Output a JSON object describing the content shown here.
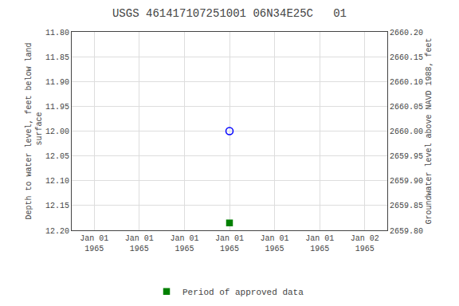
{
  "chart_data": {
    "type": "scatter",
    "title": "USGS 461417107251001 06N34E25C   01",
    "y_label": "Depth to water level, feet below land\n surface",
    "y2_label": "Groundwater level above NAVD 1988, feet",
    "categories": [
      "Jan 01\n1965",
      "Jan 01\n1965",
      "Jan 01\n1965",
      "Jan 01\n1965",
      "Jan 01\n1965",
      "Jan 01\n1965",
      "Jan 02\n1965"
    ],
    "ylim": [
      12.2,
      11.8
    ],
    "yticks": [
      {
        "value": 11.8,
        "label": "11.80"
      },
      11.85,
      {
        "value": 11.9,
        "label": "11.90"
      },
      11.95,
      {
        "value": 12.0,
        "label": "12.00"
      },
      12.05,
      {
        "value": 12.1,
        "label": "12.10"
      },
      12.15,
      {
        "value": 12.2,
        "label": "12.20"
      }
    ],
    "y2lim": [
      2659.8,
      2660.2
    ],
    "y2ticks": [
      {
        "value": 2660.2,
        "label": "2660.20"
      },
      2660.15,
      {
        "value": 2660.1,
        "label": "2660.10"
      },
      2660.05,
      {
        "value": 2660.0,
        "label": "2660.00"
      },
      2659.95,
      {
        "value": 2659.9,
        "label": "2659.90"
      },
      2659.85,
      {
        "value": 2659.8,
        "label": "2659.80"
      }
    ],
    "series": [
      {
        "color": "#0000ff",
        "marker": "circle-open",
        "values": [
          null,
          null,
          null,
          12.0,
          null,
          null,
          null
        ]
      },
      {
        "name": "Period of approved data",
        "color": "#008000",
        "marker": "square",
        "values": [
          null,
          null,
          null,
          12.185,
          null,
          null,
          null
        ]
      }
    ],
    "grid": true,
    "legend": "bottom"
  }
}
